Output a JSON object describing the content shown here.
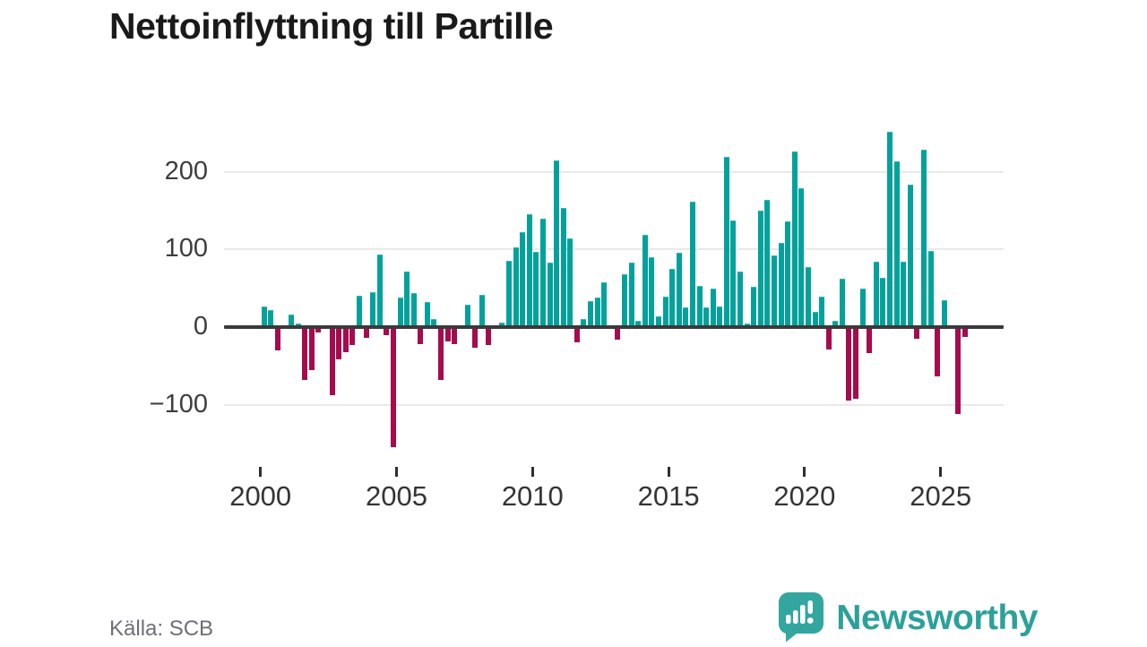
{
  "title": "Nettoinflyttning till Partille",
  "footer": {
    "source": "Källa: SCB",
    "brand": "Newsworthy"
  },
  "colors": {
    "positive_bar": "#00a29b",
    "negative_bar": "#a50b4d",
    "zero_line": "#3a3a3a",
    "gridline": "#e9e9e9",
    "title_text": "#1a1a1a",
    "axis_text": "#3d3d3d",
    "source_text": "#6e6e78",
    "brand_teal": "#2ba19a"
  },
  "chart_data": {
    "type": "bar",
    "title": "Nettoinflyttning till Partille",
    "frequency": "quarterly",
    "start": "2000 Q1",
    "end": "2025 Q4",
    "xlabel": "",
    "ylabel": "",
    "ylim": [
      -160,
      270
    ],
    "grid": "horizontal",
    "legend": "none",
    "x_tick_years": [
      2000,
      2005,
      2010,
      2015,
      2020,
      2025
    ],
    "y_ticks": [
      200,
      100,
      0,
      -100
    ],
    "y_tick_labels": [
      "200",
      "100",
      "0",
      "−100"
    ],
    "series_by_year": [
      {
        "year": 2000,
        "q": [
          27,
          22,
          -30,
          0
        ]
      },
      {
        "year": 2001,
        "q": [
          16,
          5,
          -68,
          -55
        ]
      },
      {
        "year": 2002,
        "q": [
          -7,
          2,
          -88,
          -42
        ]
      },
      {
        "year": 2003,
        "q": [
          -32,
          -23,
          41,
          -14
        ]
      },
      {
        "year": 2004,
        "q": [
          45,
          93,
          -10,
          -154
        ]
      },
      {
        "year": 2005,
        "q": [
          38,
          72,
          44,
          -22
        ]
      },
      {
        "year": 2006,
        "q": [
          32,
          11,
          -68,
          -18
        ]
      },
      {
        "year": 2007,
        "q": [
          -22,
          0,
          29,
          -27
        ]
      },
      {
        "year": 2008,
        "q": [
          42,
          -23,
          0,
          6
        ]
      },
      {
        "year": 2009,
        "q": [
          85,
          103,
          122,
          145
        ]
      },
      {
        "year": 2010,
        "q": [
          97,
          140,
          83,
          215
        ]
      },
      {
        "year": 2011,
        "q": [
          153,
          114,
          -20,
          10
        ]
      },
      {
        "year": 2012,
        "q": [
          34,
          38,
          58,
          0
        ]
      },
      {
        "year": 2013,
        "q": [
          -16,
          68,
          83,
          8
        ]
      },
      {
        "year": 2014,
        "q": [
          119,
          90,
          14,
          39
        ]
      },
      {
        "year": 2015,
        "q": [
          75,
          96,
          25,
          162
        ]
      },
      {
        "year": 2016,
        "q": [
          53,
          26,
          50,
          27
        ]
      },
      {
        "year": 2017,
        "q": [
          219,
          137,
          71,
          5
        ]
      },
      {
        "year": 2018,
        "q": [
          52,
          150,
          164,
          92
        ]
      },
      {
        "year": 2019,
        "q": [
          109,
          136,
          226,
          179
        ]
      },
      {
        "year": 2020,
        "q": [
          77,
          20,
          39,
          -29
        ]
      },
      {
        "year": 2021,
        "q": [
          8,
          62,
          -94,
          -92
        ]
      },
      {
        "year": 2022,
        "q": [
          50,
          -33,
          84,
          64
        ]
      },
      {
        "year": 2023,
        "q": [
          251,
          214,
          84,
          183
        ]
      },
      {
        "year": 2024,
        "q": [
          -15,
          228,
          98,
          -63
        ]
      },
      {
        "year": 2025,
        "q": [
          35,
          0,
          -112,
          -13
        ]
      }
    ]
  }
}
